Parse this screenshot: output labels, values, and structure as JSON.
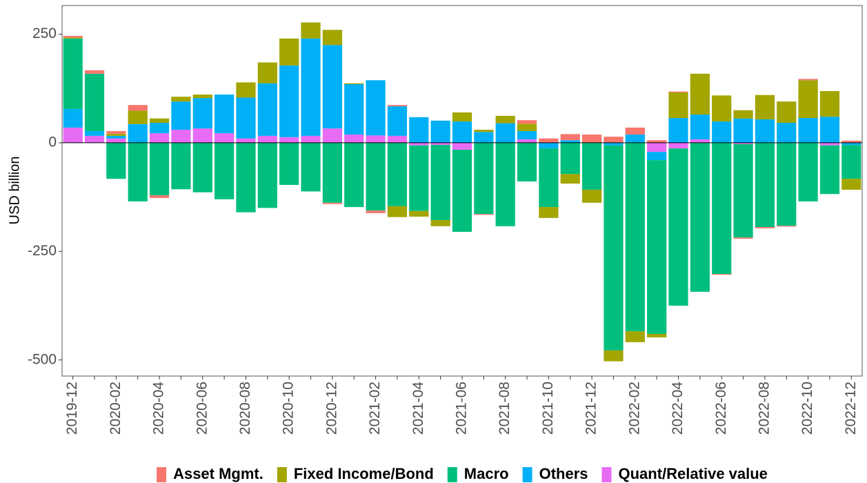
{
  "chart_data": {
    "type": "bar",
    "stacked": true,
    "y_label": "USD billion",
    "categories": [
      "2019-12",
      null,
      "2020-02",
      null,
      "2020-04",
      null,
      "2020-06",
      null,
      "2020-08",
      null,
      "2020-10",
      null,
      "2020-12",
      null,
      "2021-02",
      null,
      "2021-04",
      null,
      "2021-06",
      null,
      "2021-08",
      null,
      "2021-10",
      null,
      "2021-12",
      null,
      "2022-02",
      null,
      "2022-04",
      null,
      "2022-06",
      null,
      "2022-08",
      null,
      "2022-10",
      null,
      "2022-12"
    ],
    "series": [
      {
        "name": "Asset Mgmt.",
        "color": "#F8766D",
        "values": [
          4,
          8,
          6,
          13,
          -6,
          0,
          0,
          0,
          0,
          0,
          0,
          0,
          -3,
          0,
          -6,
          3,
          0,
          0,
          0,
          -2,
          0,
          8,
          10,
          14,
          19,
          14,
          16,
          6,
          2,
          0,
          -2,
          -3,
          -3,
          -2,
          3,
          0,
          5
        ]
      },
      {
        "name": "Fixed Income/Bond",
        "color": "#A3A500",
        "values": [
          2,
          0,
          5,
          31,
          10,
          11,
          8,
          0,
          35,
          48,
          62,
          37,
          35,
          2,
          0,
          -25,
          -13,
          -14,
          21,
          5,
          17,
          17,
          -25,
          -22,
          -30,
          -25,
          -25,
          -8,
          59,
          94,
          60,
          19,
          56,
          49,
          87,
          59,
          -25
        ]
      },
      {
        "name": "Macro",
        "color": "#00BF7D",
        "values": [
          162,
          132,
          -83,
          -135,
          -121,
          -107,
          -114,
          -130,
          -160,
          -150,
          -97,
          -112,
          -138,
          -148,
          -156,
          -146,
          -151,
          -173,
          -189,
          -164,
          -192,
          -89,
          -135,
          -72,
          -108,
          -472,
          -434,
          -400,
          -362,
          -343,
          -302,
          -215,
          -194,
          -191,
          -135,
          -112,
          -78
        ]
      },
      {
        "name": "Others",
        "color": "#00B0F6",
        "values": [
          43,
          11,
          6,
          43,
          24,
          65,
          70,
          89,
          94,
          121,
          165,
          224,
          192,
          116,
          127,
          68,
          59,
          51,
          49,
          25,
          45,
          19,
          -13,
          6,
          0,
          -6,
          19,
          -19,
          57,
          57,
          49,
          56,
          54,
          46,
          57,
          60,
          -5
        ]
      },
      {
        "name": "Quant/Relative value",
        "color": "#E76BF3",
        "values": [
          35,
          16,
          10,
          0,
          22,
          30,
          33,
          22,
          10,
          16,
          13,
          16,
          33,
          19,
          17,
          16,
          -6,
          -5,
          -16,
          0,
          0,
          8,
          0,
          0,
          0,
          0,
          0,
          -21,
          -13,
          8,
          0,
          -3,
          0,
          0,
          0,
          -6,
          0
        ]
      }
    ],
    "ylim": [
      -537,
      316
    ],
    "yticks": [
      -500,
      -250,
      0,
      250
    ],
    "legend": "bottom"
  }
}
